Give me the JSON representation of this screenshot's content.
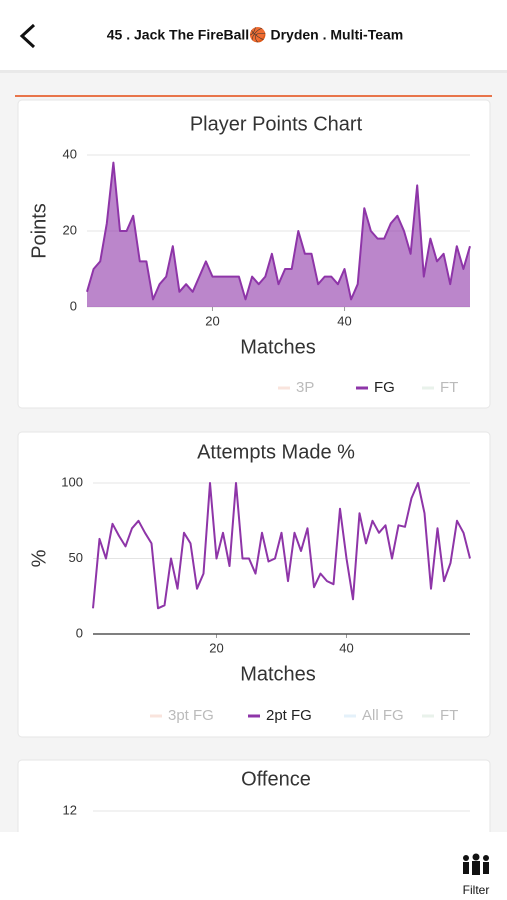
{
  "header": {
    "title": "45 . Jack  The FireBall🏀  Dryden . Multi-Team"
  },
  "footer": {
    "filter": "Filter"
  },
  "chart_data": [
    {
      "type": "area",
      "title": "Player Points Chart",
      "x_label": "Matches",
      "y_label": "Points",
      "x": [
        1,
        2,
        3,
        4,
        5,
        6,
        7,
        8,
        9,
        10,
        11,
        12,
        13,
        14,
        15,
        16,
        17,
        18,
        19,
        20,
        21,
        22,
        23,
        24,
        25,
        26,
        27,
        28,
        29,
        30,
        31,
        32,
        33,
        34,
        35,
        36,
        37,
        38,
        39,
        40,
        41,
        42,
        43,
        44,
        45,
        46,
        47,
        48,
        49,
        50,
        51,
        52,
        53,
        54,
        55,
        56,
        57,
        58,
        59
      ],
      "xlim": [
        1,
        59
      ],
      "xticks": [
        20,
        40
      ],
      "ylim": [
        0,
        40
      ],
      "yticks": [
        0,
        20,
        40
      ],
      "grid": true,
      "series": [
        {
          "name": "3P",
          "color": "#f2c4b6",
          "visible": false
        },
        {
          "name": "FG",
          "color": "#8e35a8",
          "visible": true,
          "values": [
            4,
            10,
            12,
            22,
            38,
            20,
            20,
            24,
            12,
            12,
            2,
            6,
            8,
            16,
            4,
            6,
            4,
            8,
            12,
            8,
            8,
            8,
            8,
            8,
            2,
            8,
            6,
            8,
            14,
            6,
            10,
            10,
            20,
            14,
            14,
            6,
            8,
            8,
            6,
            10,
            2,
            6,
            26,
            20,
            18,
            18,
            22,
            24,
            20,
            14,
            32,
            8,
            18,
            12,
            14,
            6,
            16,
            10,
            16
          ]
        },
        {
          "name": "FT",
          "color": "#cfe3d3",
          "visible": false
        }
      ]
    },
    {
      "type": "line",
      "title": "Attempts Made %",
      "x_label": "Matches",
      "y_label": "%",
      "x": [
        1,
        2,
        3,
        4,
        5,
        6,
        7,
        8,
        9,
        10,
        11,
        12,
        13,
        14,
        15,
        16,
        17,
        18,
        19,
        20,
        21,
        22,
        23,
        24,
        25,
        26,
        27,
        28,
        29,
        30,
        31,
        32,
        33,
        34,
        35,
        36,
        37,
        38,
        39,
        40,
        41,
        42,
        43,
        44,
        45,
        46,
        47,
        48,
        49,
        50,
        51,
        52,
        53,
        54,
        55,
        56,
        57,
        58,
        59
      ],
      "xlim": [
        1,
        59
      ],
      "xticks": [
        20,
        40
      ],
      "ylim": [
        0,
        100
      ],
      "yticks": [
        0,
        50,
        100
      ],
      "grid": true,
      "series": [
        {
          "name": "3pt FG",
          "color": "#f2c4b6",
          "visible": false
        },
        {
          "name": "2pt FG",
          "color": "#8e35a8",
          "visible": true,
          "values": [
            17,
            63,
            50,
            73,
            65,
            58,
            70,
            75,
            67,
            60,
            17,
            19,
            50,
            30,
            67,
            60,
            30,
            40,
            100,
            50,
            67,
            45,
            100,
            50,
            50,
            40,
            67,
            48,
            50,
            67,
            35,
            67,
            55,
            70,
            31,
            40,
            35,
            33,
            83,
            50,
            23,
            80,
            60,
            75,
            67,
            72,
            50,
            72,
            71,
            90,
            100,
            80,
            30,
            70,
            35,
            47,
            75,
            67,
            50
          ]
        },
        {
          "name": "All FG",
          "color": "#c4e2f4",
          "visible": false
        },
        {
          "name": "FT",
          "color": "#cfe3d3",
          "visible": false
        }
      ]
    },
    {
      "type": "line",
      "title": "Offence",
      "yticks": [
        12
      ]
    }
  ]
}
